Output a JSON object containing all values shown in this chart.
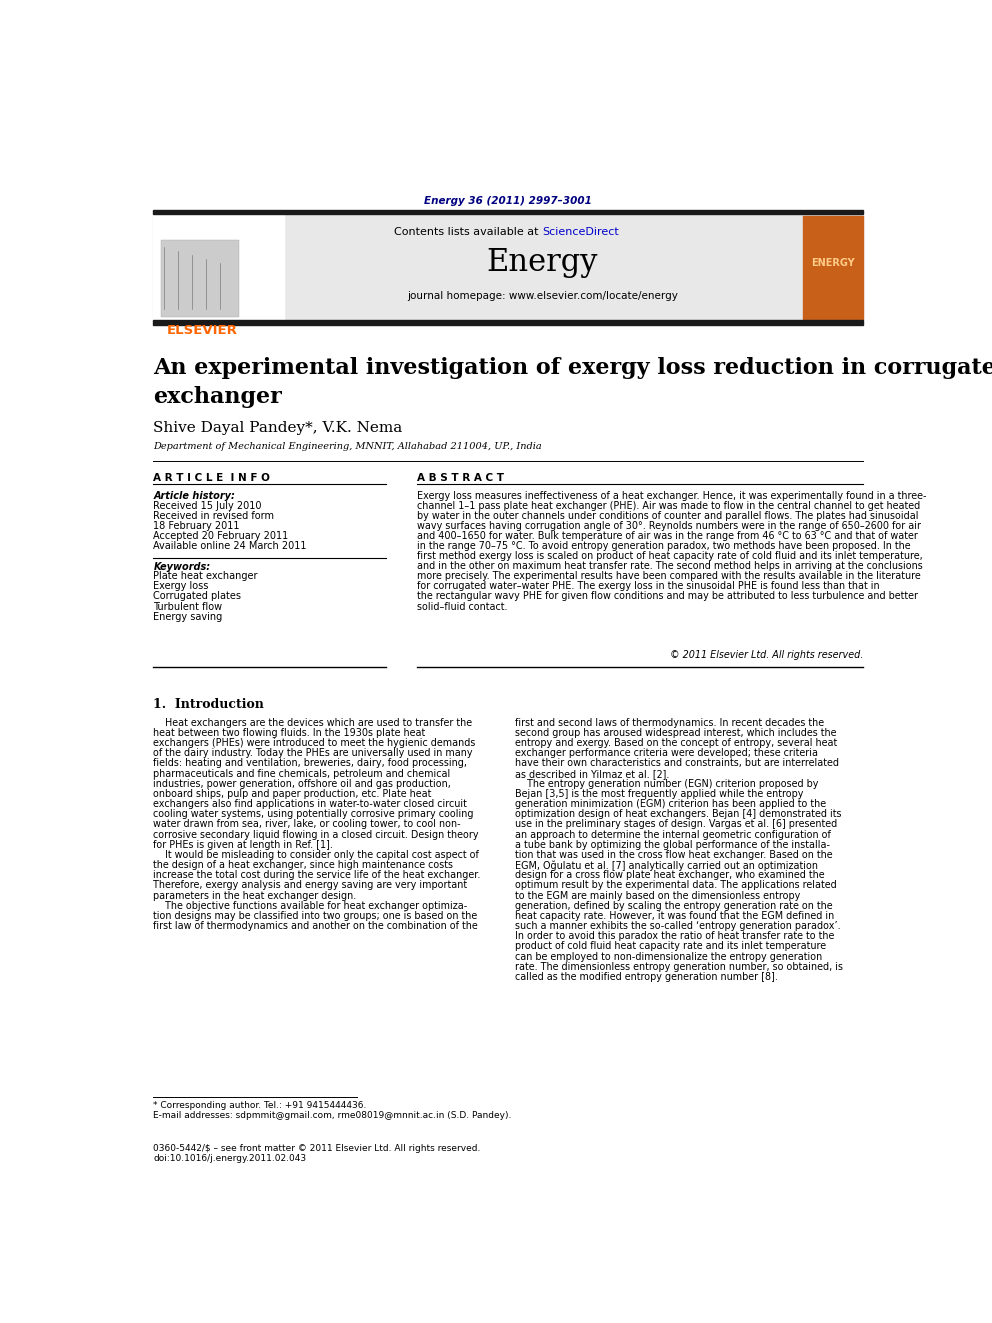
{
  "page_width": 9.92,
  "page_height": 13.23,
  "background_color": "#ffffff",
  "header_citation": "Energy 36 (2011) 2997–3001",
  "header_citation_color": "#000080",
  "journal_name": "Energy",
  "journal_url": "journal homepage: www.elsevier.com/locate/energy",
  "sciencedirect_text": "Contents lists available at ",
  "sciencedirect_link": "ScienceDirect",
  "sciencedirect_color": "#0000cc",
  "header_bg_color": "#e8e8e8",
  "thick_bar_color": "#1a1a1a",
  "elsevier_color": "#ff6600",
  "article_title_line1": "An experimental investigation of exergy loss reduction in corrugated plate heat",
  "article_title_line2": "exchanger",
  "authors": "Shive Dayal Pandey*, V.K. Nema",
  "affiliation": "Department of Mechanical Engineering, MNNIT, Allahabad 211004, UP., India",
  "article_info_header": "A R T I C L E  I N F O",
  "abstract_header": "A B S T R A C T",
  "article_history_label": "Article history:",
  "history_lines": [
    "Received 15 July 2010",
    "Received in revised form",
    "18 February 2011",
    "Accepted 20 February 2011",
    "Available online 24 March 2011"
  ],
  "keywords_label": "Keywords:",
  "keywords": [
    "Plate heat exchanger",
    "Exergy loss",
    "Corrugated plates",
    "Turbulent flow",
    "Energy saving"
  ],
  "abstract_text": "Exergy loss measures ineffectiveness of a heat exchanger. Hence, it was experimentally found in a three-\nchannel 1–1 pass plate heat exchanger (PHE). Air was made to flow in the central channel to get heated\nby water in the outer channels under conditions of counter and parallel flows. The plates had sinusoidal\nwavy surfaces having corrugation angle of 30°. Reynolds numbers were in the range of 650–2600 for air\nand 400–1650 for water. Bulk temperature of air was in the range from 46 °C to 63 °C and that of water\nin the range 70–75 °C. To avoid entropy generation paradox, two methods have been proposed. In the\nfirst method exergy loss is scaled on product of heat capacity rate of cold fluid and its inlet temperature,\nand in the other on maximum heat transfer rate. The second method helps in arriving at the conclusions\nmore precisely. The experimental results have been compared with the results available in the literature\nfor corrugated water–water PHE. The exergy loss in the sinusoidal PHE is found less than that in\nthe rectangular wavy PHE for given flow conditions and may be attributed to less turbulence and better\nsolid–fluid contact.",
  "copyright_text": "© 2011 Elsevier Ltd. All rights reserved.",
  "section1_title": "1.  Introduction",
  "section1_col1_lines": [
    "    Heat exchangers are the devices which are used to transfer the",
    "heat between two flowing fluids. In the 1930s plate heat",
    "exchangers (PHEs) were introduced to meet the hygienic demands",
    "of the dairy industry. Today the PHEs are universally used in many",
    "fields: heating and ventilation, breweries, dairy, food processing,",
    "pharmaceuticals and fine chemicals, petroleum and chemical",
    "industries, power generation, offshore oil and gas production,",
    "onboard ships, pulp and paper production, etc. Plate heat",
    "exchangers also find applications in water-to-water closed circuit",
    "cooling water systems, using potentially corrosive primary cooling",
    "water drawn from sea, river, lake, or cooling tower, to cool non-",
    "corrosive secondary liquid flowing in a closed circuit. Design theory",
    "for PHEs is given at length in Ref. [1].",
    "    It would be misleading to consider only the capital cost aspect of",
    "the design of a heat exchanger, since high maintenance costs",
    "increase the total cost during the service life of the heat exchanger.",
    "Therefore, exergy analysis and energy saving are very important",
    "parameters in the heat exchanger design.",
    "    The objective functions available for heat exchanger optimiza-",
    "tion designs may be classified into two groups; one is based on the",
    "first law of thermodynamics and another on the combination of the"
  ],
  "section1_col2_lines": [
    "first and second laws of thermodynamics. In recent decades the",
    "second group has aroused widespread interest, which includes the",
    "entropy and exergy. Based on the concept of entropy, several heat",
    "exchanger performance criteria were developed; these criteria",
    "have their own characteristics and constraints, but are interrelated",
    "as described in Yilmaz et al. [2].",
    "    The entropy generation number (EGN) criterion proposed by",
    "Bejan [3,5] is the most frequently applied while the entropy",
    "generation minimization (EGM) criterion has been applied to the",
    "optimization design of heat exchangers. Bejan [4] demonstrated its",
    "use in the preliminary stages of design. Vargas et al. [6] presented",
    "an approach to determine the internal geometric configuration of",
    "a tube bank by optimizing the global performance of the installa-",
    "tion that was used in the cross flow heat exchanger. Based on the",
    "EGM, Oğulatu et al. [7] analytically carried out an optimization",
    "design for a cross flow plate heat exchanger, who examined the",
    "optimum result by the experimental data. The applications related",
    "to the EGM are mainly based on the dimensionless entropy",
    "generation, defined by scaling the entropy generation rate on the",
    "heat capacity rate. However, it was found that the EGM defined in",
    "such a manner exhibits the so-called ‘entropy generation paradox’.",
    "In order to avoid this paradox the ratio of heat transfer rate to the",
    "product of cold fluid heat capacity rate and its inlet temperature",
    "can be employed to non-dimensionalize the entropy generation",
    "rate. The dimensionless entropy generation number, so obtained, is",
    "called as the modified entropy generation number [8]."
  ],
  "footnote_star": "* Corresponding author. Tel.: +91 9415444436.",
  "footnote_email": "E-mail addresses: sdpmmit@gmail.com, rme08019@mnnit.ac.in (S.D. Pandey).",
  "footer_line1": "0360-5442/$ – see front matter © 2011 Elsevier Ltd. All rights reserved.",
  "footer_line2": "doi:10.1016/j.energy.2011.02.043"
}
